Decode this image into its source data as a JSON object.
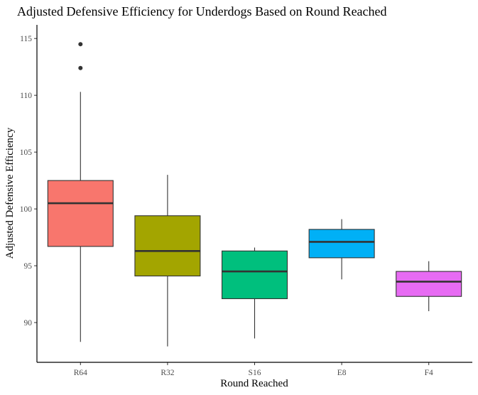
{
  "chart_data": {
    "type": "box",
    "title": "Adjusted Defensive Efficiency for Underdogs Based on Round Reached",
    "xlabel": "Round Reached",
    "ylabel": "Adjusted Defensive Efficiency",
    "ylim": [
      86.5,
      116.2
    ],
    "yticks": [
      90,
      95,
      100,
      105,
      110,
      115
    ],
    "categories": [
      "R64",
      "R32",
      "S16",
      "E8",
      "F4"
    ],
    "boxes": [
      {
        "category": "R64",
        "color": "#F8766D",
        "whisker_low": 88.3,
        "q1": 96.7,
        "median": 100.5,
        "q3": 102.5,
        "whisker_high": 110.3,
        "outliers": [
          112.4,
          114.5
        ]
      },
      {
        "category": "R32",
        "color": "#A3A500",
        "whisker_low": 87.9,
        "q1": 94.1,
        "median": 96.3,
        "q3": 99.4,
        "whisker_high": 103.0,
        "outliers": []
      },
      {
        "category": "S16",
        "color": "#00BF7D",
        "whisker_low": 88.6,
        "q1": 92.1,
        "median": 94.5,
        "q3": 96.3,
        "whisker_high": 96.6,
        "outliers": []
      },
      {
        "category": "E8",
        "color": "#00B0F6",
        "whisker_low": 93.8,
        "q1": 95.7,
        "median": 97.1,
        "q3": 98.2,
        "whisker_high": 99.1,
        "outliers": []
      },
      {
        "category": "F4",
        "color": "#E76BF3",
        "whisker_low": 91.0,
        "q1": 92.3,
        "median": 93.6,
        "q3": 94.5,
        "whisker_high": 95.4,
        "outliers": []
      }
    ],
    "grid": false,
    "legend": "none"
  }
}
